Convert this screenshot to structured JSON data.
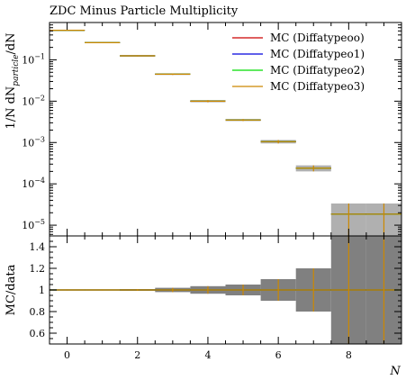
{
  "chart_data": {
    "type": "step",
    "title": "ZDC Minus Particle Multiplicity",
    "xlabel": "N",
    "ylabel_main": "1/N dN_particle/dN",
    "ylabel_ratio": "MC/data",
    "x_range": [
      -0.5,
      9.5
    ],
    "x_ticks": [
      0,
      2,
      4,
      6,
      8
    ],
    "x_tick_labels": [
      "0",
      "2",
      "4",
      "6",
      "8"
    ],
    "y_scale": "log",
    "y_range": [
      5.5e-06,
      0.8
    ],
    "y_major_ticks": [
      1e-05,
      0.0001,
      0.001,
      0.01,
      0.1
    ],
    "y_tick_labels": [
      "10^-5",
      "10^-4",
      "10^-3",
      "10^-2",
      "10^-1"
    ],
    "ratio_range": [
      0.5,
      1.5
    ],
    "ratio_ticks": [
      0.6,
      0.8,
      1.0,
      1.2,
      1.4
    ],
    "ratio_tick_labels": [
      "0.6",
      "0.8",
      "1",
      "1.2",
      "1.4"
    ],
    "bins": [
      {
        "lo": -0.5,
        "hi": 0.5,
        "y": 0.52,
        "err": 0.01,
        "band": 0.005
      },
      {
        "lo": 0.5,
        "hi": 1.5,
        "y": 0.26,
        "err": 0.006,
        "band": 0.005
      },
      {
        "lo": 1.5,
        "hi": 2.5,
        "y": 0.125,
        "err": 0.004,
        "band": 0.008
      },
      {
        "lo": 2.5,
        "hi": 3.5,
        "y": 0.045,
        "err": 0.002,
        "band": 0.02
      },
      {
        "lo": 3.5,
        "hi": 4.5,
        "y": 0.01,
        "err": 0.0006,
        "band": 0.035
      },
      {
        "lo": 4.5,
        "hi": 5.5,
        "y": 0.0035,
        "err": 0.0002,
        "band": 0.05
      },
      {
        "lo": 5.5,
        "hi": 6.5,
        "y": 0.00105,
        "err": 0.0001,
        "band": 0.1
      },
      {
        "lo": 6.5,
        "hi": 7.5,
        "y": 0.00024,
        "err": 4e-05,
        "band": 0.2
      },
      {
        "lo": 7.5,
        "hi": 8.5,
        "y": 1.85e-05,
        "err": 1.5e-05,
        "band": 1.0
      },
      {
        "lo": 8.5,
        "hi": 9.5,
        "y": 1.85e-05,
        "err": 1.5e-05,
        "band": 1.0
      }
    ],
    "series": [
      {
        "name": "MC (Diffatypeoo)",
        "color": "#cc0000"
      },
      {
        "name": "MC (Diffatypeo1)",
        "color": "#0000dd"
      },
      {
        "name": "MC (Diffatypeo2)",
        "color": "#00dd00"
      },
      {
        "name": "MC (Diffatypeo3)",
        "color": "#cc8800"
      }
    ],
    "band_color": "#808080",
    "legend_position": "top-right"
  }
}
